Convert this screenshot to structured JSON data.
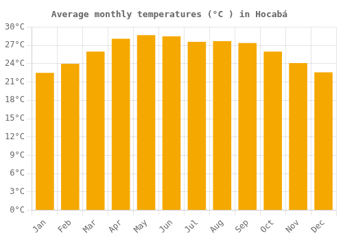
{
  "chart_data": {
    "type": "bar",
    "title": "Average monthly temperatures (°C ) in Hocabá",
    "categories": [
      "Jan",
      "Feb",
      "Mar",
      "Apr",
      "May",
      "Jun",
      "Jul",
      "Aug",
      "Sep",
      "Oct",
      "Nov",
      "Dec"
    ],
    "values": [
      22.5,
      24.0,
      26.0,
      28.1,
      28.7,
      28.5,
      27.6,
      27.7,
      27.4,
      26.0,
      24.1,
      22.6
    ],
    "color": "#F5A800",
    "ylim": [
      0,
      30
    ],
    "yticks": [
      {
        "value": 0,
        "label": "0°C"
      },
      {
        "value": 3,
        "label": "3°C"
      },
      {
        "value": 6,
        "label": "6°C"
      },
      {
        "value": 9,
        "label": "9°C"
      },
      {
        "value": 12,
        "label": "12°C"
      },
      {
        "value": 15,
        "label": "15°C"
      },
      {
        "value": 18,
        "label": "18°C"
      },
      {
        "value": 21,
        "label": "21°C"
      },
      {
        "value": 24,
        "label": "24°C"
      },
      {
        "value": 27,
        "label": "27°C"
      },
      {
        "value": 30,
        "label": "30°C"
      }
    ],
    "grid": true
  }
}
